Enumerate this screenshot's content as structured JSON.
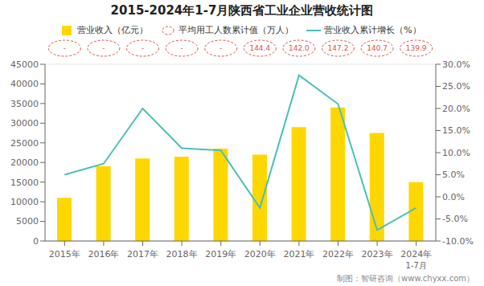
{
  "chart_data": {
    "type": "bar",
    "title": "2015-2024年1-7月陕西省工业企业营收统计图",
    "categories": [
      "2015年",
      "2016年",
      "2017年",
      "2018年",
      "2019年",
      "2020年",
      "2021年",
      "2022年",
      "2023年",
      "2024年"
    ],
    "series": [
      {
        "name": "营业收入（亿元）",
        "type": "bar",
        "color": "#FFD700",
        "values": [
          11000,
          19000,
          21000,
          21500,
          23500,
          22000,
          29000,
          34000,
          27500,
          15000
        ]
      },
      {
        "name": "平均用工人数累计值（万人）",
        "type": "label",
        "color": "#E05050",
        "values": [
          null,
          null,
          null,
          null,
          null,
          144.4,
          142.0,
          147.2,
          140.7,
          139.9
        ],
        "value_labels": [
          "-",
          "-",
          "-",
          "-",
          "-",
          "144.4",
          "142.0",
          "147.2",
          "140.7",
          "139.9"
        ]
      },
      {
        "name": "营业收入累计增长（%）",
        "type": "line",
        "color": "#4BBFB8",
        "axis": "y2",
        "values": [
          5.0,
          7.5,
          20.0,
          11.0,
          10.5,
          -2.5,
          27.5,
          21.0,
          -7.5,
          -2.5
        ]
      }
    ],
    "ylim": [
      0,
      45000
    ],
    "yticks": [
      0,
      5000,
      10000,
      15000,
      20000,
      25000,
      30000,
      35000,
      40000,
      45000
    ],
    "y2lim": [
      -10.0,
      30.0
    ],
    "y2ticks": [
      {
        "value": -10.0,
        "label": "-10.0%"
      },
      {
        "value": -5.0,
        "label": "-5.0%"
      },
      {
        "value": 0.0,
        "label": "0.0%"
      },
      {
        "value": 5.0,
        "label": "5.0%"
      },
      {
        "value": 10.0,
        "label": "10.0%"
      },
      {
        "value": 15.0,
        "label": "15.0%"
      },
      {
        "value": 20.0,
        "label": "20.0%"
      },
      {
        "value": 25.0,
        "label": "25.0%"
      },
      {
        "value": 30.0,
        "label": "30.0%"
      }
    ],
    "grid": true,
    "legend": "top",
    "annotations": [
      {
        "text": "1-7月",
        "category": "2024年"
      },
      {
        "text": "制图：智研咨询（www.chyxx.com）"
      }
    ]
  }
}
